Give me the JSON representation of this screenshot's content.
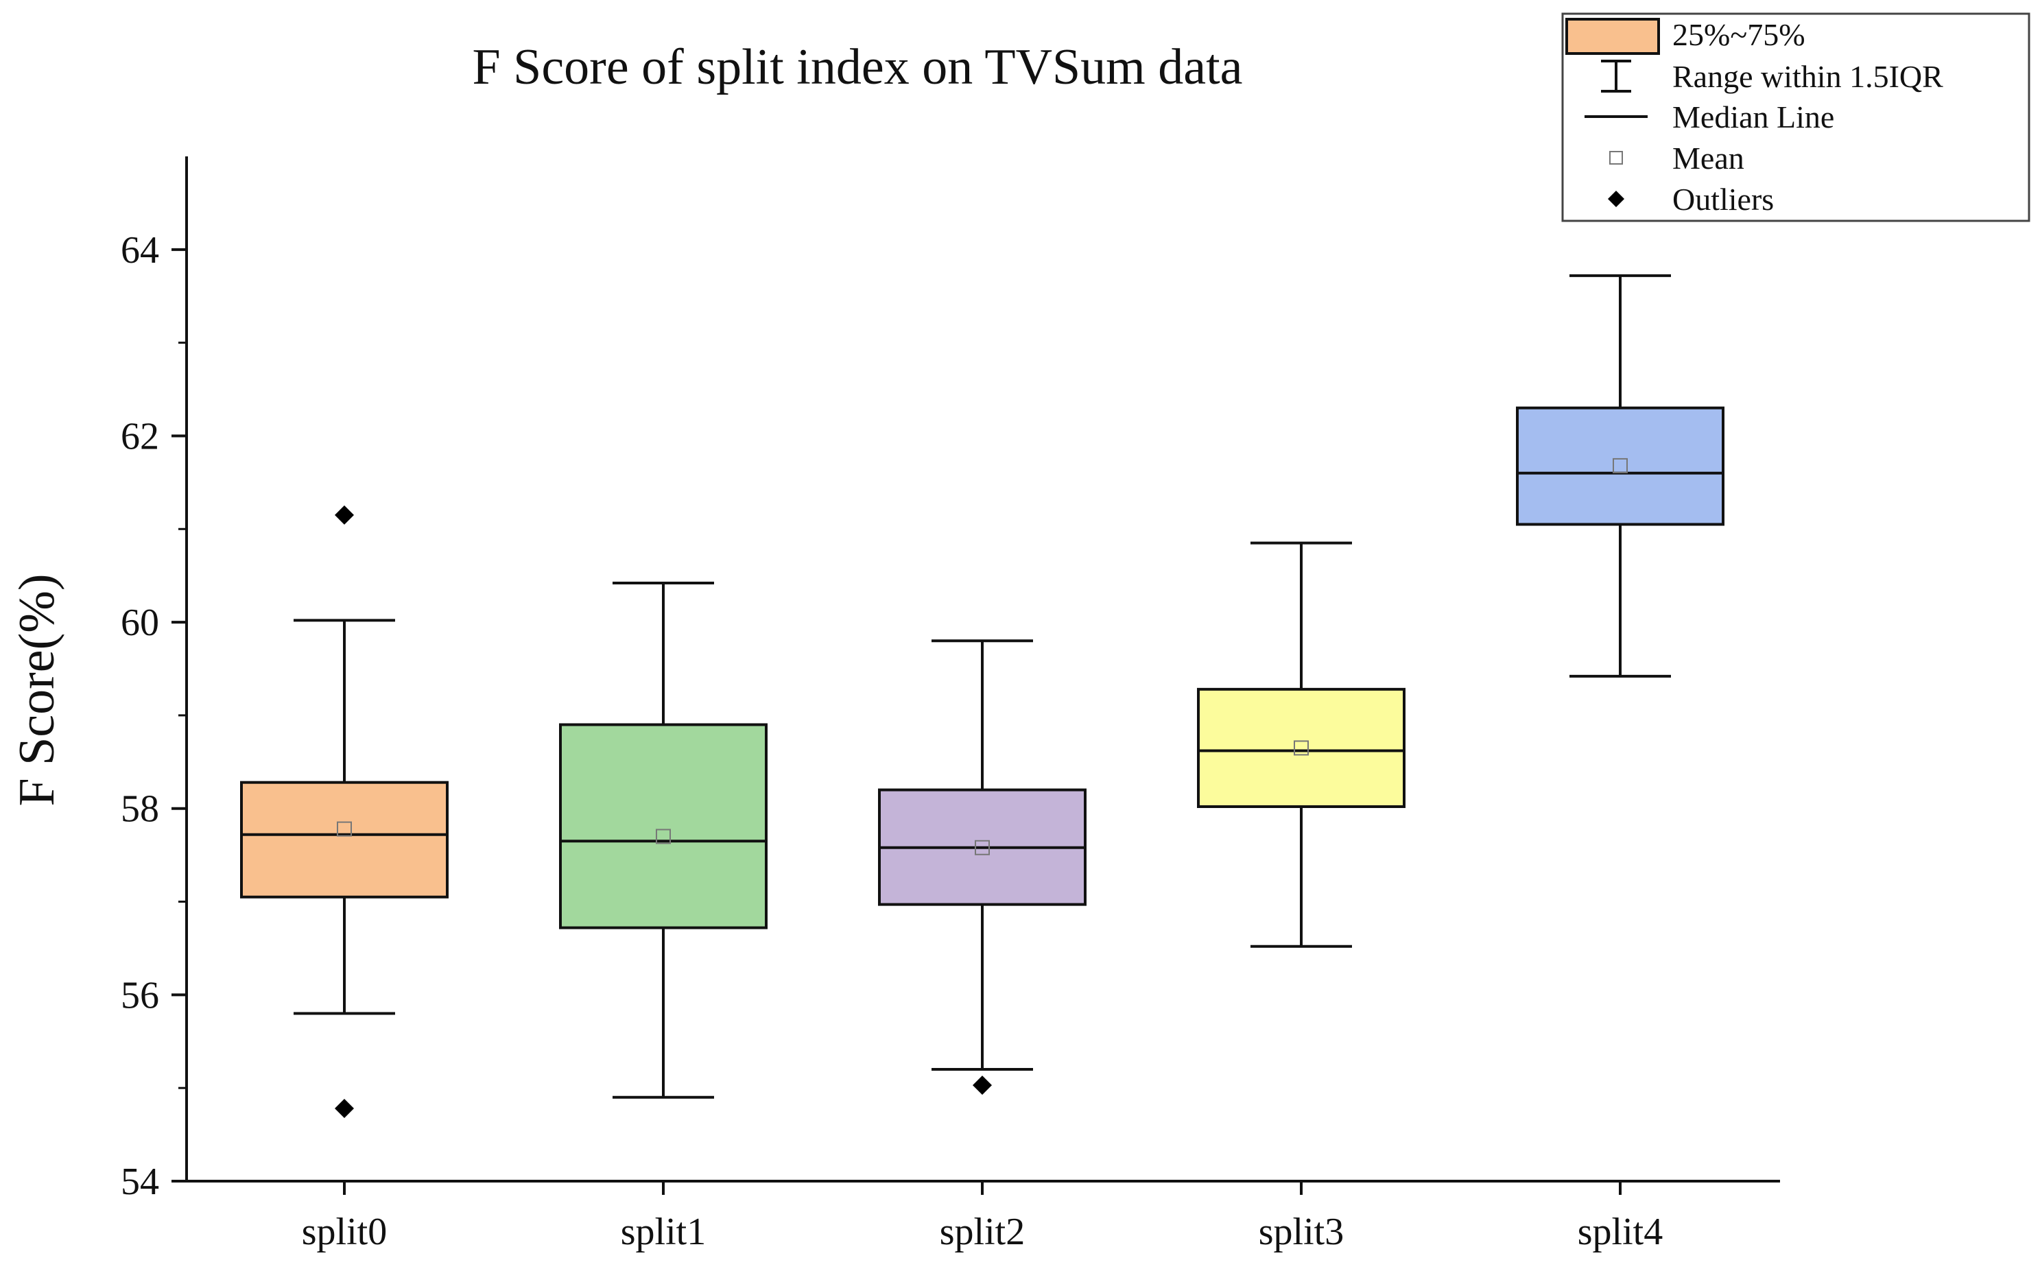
{
  "chart_data": {
    "type": "box",
    "title": "F Score of split index on TVSum data",
    "xlabel": "",
    "ylabel": "F Score(%)",
    "ylim": [
      54,
      65
    ],
    "yticks": [
      54,
      56,
      58,
      60,
      62,
      64
    ],
    "ytick_labels": [
      "54",
      "56",
      "58",
      "60",
      "62",
      "64"
    ],
    "categories": [
      "split0",
      "split1",
      "split2",
      "split3",
      "split4"
    ],
    "series": [
      {
        "name": "split0",
        "color": "#F9C08E",
        "whisker_low": 55.8,
        "q1": 57.05,
        "median": 57.72,
        "q3": 58.28,
        "whisker_high": 60.02,
        "mean": 57.78,
        "outliers": [
          61.15,
          54.78
        ]
      },
      {
        "name": "split1",
        "color": "#A2D89D",
        "whisker_low": 54.9,
        "q1": 56.72,
        "median": 57.65,
        "q3": 58.9,
        "whisker_high": 60.42,
        "mean": 57.7,
        "outliers": []
      },
      {
        "name": "split2",
        "color": "#C4B4D8",
        "whisker_low": 55.2,
        "q1": 56.97,
        "median": 57.58,
        "q3": 58.2,
        "whisker_high": 59.8,
        "mean": 57.58,
        "outliers": [
          55.03
        ]
      },
      {
        "name": "split3",
        "color": "#FCFC9C",
        "whisker_low": 56.52,
        "q1": 58.02,
        "median": 58.62,
        "q3": 59.28,
        "whisker_high": 60.85,
        "mean": 58.65,
        "outliers": []
      },
      {
        "name": "split4",
        "color": "#A4BDF0",
        "whisker_low": 59.42,
        "q1": 61.05,
        "median": 61.6,
        "q3": 62.3,
        "whisker_high": 63.72,
        "mean": 61.68,
        "outliers": []
      }
    ],
    "legend": {
      "position": "top-right",
      "box_color": "#F9C08E",
      "items": [
        "25%~75%",
        "Range within 1.5IQR",
        "Median Line",
        "Mean",
        "Outliers"
      ]
    }
  }
}
